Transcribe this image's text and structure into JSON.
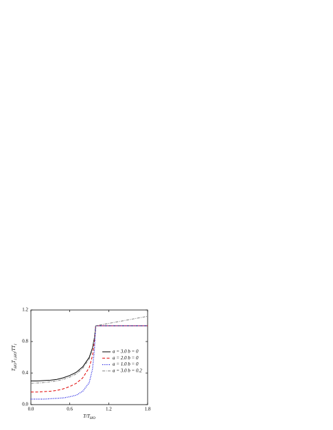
{
  "chart_data": {
    "type": "line",
    "x": [
      0,
      0.1,
      0.2,
      0.3,
      0.4,
      0.5,
      0.6,
      0.7,
      0.8,
      0.9,
      0.95,
      0.98,
      1.0,
      1.2,
      1.4,
      1.6,
      1.8
    ],
    "series": [
      {
        "name": "a = 3.0 b = 0",
        "color": "#000000",
        "style": "solid",
        "values": [
          0.3,
          0.3,
          0.305,
          0.31,
          0.32,
          0.34,
          0.37,
          0.41,
          0.48,
          0.6,
          0.72,
          0.85,
          1.0,
          1.0,
          1.0,
          1.0,
          1.0
        ]
      },
      {
        "name": "a = 2.0 b = 0",
        "color": "#e00000",
        "style": "dashed",
        "values": [
          0.16,
          0.16,
          0.165,
          0.17,
          0.18,
          0.2,
          0.23,
          0.27,
          0.34,
          0.47,
          0.62,
          0.8,
          1.0,
          1.0,
          1.0,
          1.0,
          1.0
        ]
      },
      {
        "name": "a = 1.0 b = 0",
        "color": "#1010e0",
        "style": "dotted",
        "values": [
          0.07,
          0.07,
          0.07,
          0.075,
          0.08,
          0.085,
          0.1,
          0.12,
          0.17,
          0.28,
          0.45,
          0.7,
          1.0,
          1.0,
          1.0,
          1.0,
          1.0
        ]
      },
      {
        "name": "a = 3.0 b = 0.2",
        "color": "#808080",
        "style": "dashdot",
        "values": [
          0.27,
          0.275,
          0.28,
          0.29,
          0.3,
          0.32,
          0.35,
          0.39,
          0.46,
          0.58,
          0.7,
          0.84,
          1.0,
          1.03,
          1.06,
          1.09,
          1.12
        ]
      }
    ],
    "xlim": [
      0,
      1.8
    ],
    "ylim": [
      0,
      1.2
    ],
    "xticks": [
      {
        "value": 0,
        "label": "0.0"
      },
      0.6,
      1.2,
      1.8
    ],
    "yticks": [
      {
        "value": 0,
        "label": "0.0"
      },
      0.4,
      0.8,
      1.2
    ],
    "xlabel_parts": [
      {
        "text": "T/T"
      },
      {
        "text": "HO",
        "sub": true
      }
    ],
    "ylabel_parts": [
      {
        "text": "T"
      },
      {
        "text": "HO",
        "sub": true
      },
      {
        "text": "T"
      },
      {
        "text": "1,HO",
        "sub": true
      },
      {
        "text": "/TT"
      },
      {
        "text": "1",
        "sub": true
      }
    ],
    "legend": "right"
  }
}
